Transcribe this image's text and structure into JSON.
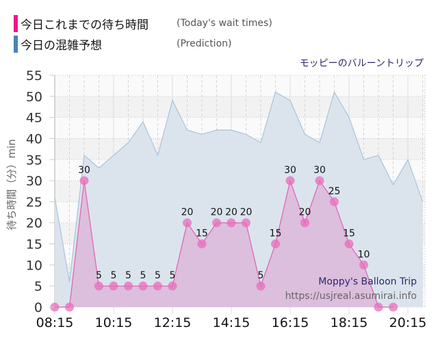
{
  "legend": [
    {
      "label": "今日これまでの待ち時間",
      "english": "(Today's wait times)",
      "color": "#f0148c"
    },
    {
      "label": "今日の混雑予想",
      "english": "(Prediction)",
      "color": "#4a82b4"
    }
  ],
  "chart_title": "モッピーのバルーントリップ",
  "watermark": {
    "name": "Moppy's Balloon Trip",
    "url": "https://usjreal.asumirai.info"
  },
  "colors": {
    "wait_line": "#e060b0",
    "wait_fill": "#dcb9da",
    "wait_point": "#ea6cbb",
    "prediction_line": "#a9c3d9",
    "prediction_fill": "#d9e3ec",
    "band_light": "#fafafa",
    "band_dark": "#f2f2f2"
  },
  "chart_data": {
    "type": "area",
    "title": "モッピーのバルーントリップ",
    "xlabel": "",
    "ylabel": "待ち時間（分）min",
    "ylim": [
      0,
      55
    ],
    "yticks": [
      0,
      5,
      10,
      15,
      20,
      25,
      30,
      35,
      40,
      45,
      50,
      55
    ],
    "xtick_labels": [
      "08:15",
      "10:15",
      "12:15",
      "14:15",
      "16:15",
      "18:15",
      "20:15"
    ],
    "grid": true,
    "legend_position": "top-left",
    "series": [
      {
        "name": "今日これまでの待ち時間 (Today's wait times)",
        "type": "area+markers",
        "x": [
          "08:15",
          "08:45",
          "09:15",
          "09:45",
          "10:15",
          "10:45",
          "11:15",
          "11:45",
          "12:15",
          "12:45",
          "13:15",
          "13:45",
          "14:15",
          "14:45",
          "15:15",
          "15:45",
          "16:15",
          "16:45",
          "17:15",
          "17:45",
          "18:15",
          "18:45",
          "19:15",
          "19:45"
        ],
        "values": [
          0,
          0,
          30,
          5,
          5,
          5,
          5,
          5,
          5,
          20,
          15,
          20,
          20,
          20,
          5,
          15,
          30,
          20,
          30,
          25,
          15,
          10,
          0,
          0
        ],
        "labels": [
          "",
          "",
          "30",
          "5",
          "5",
          "5",
          "5",
          "5",
          "5",
          "20",
          "15",
          "20",
          "20",
          "20",
          "5",
          "15",
          "30",
          "20",
          "30",
          "25",
          "15",
          "10",
          "",
          ""
        ]
      },
      {
        "name": "今日の混雑予想 (Prediction)",
        "type": "area",
        "x": [
          "08:15",
          "08:45",
          "09:15",
          "09:45",
          "10:15",
          "10:45",
          "11:15",
          "11:45",
          "12:15",
          "12:45",
          "13:15",
          "13:45",
          "14:15",
          "14:45",
          "15:15",
          "15:45",
          "16:15",
          "16:45",
          "17:15",
          "17:45",
          "18:15",
          "18:45",
          "19:15",
          "19:45",
          "20:15",
          "20:45"
        ],
        "values": [
          26,
          6,
          36,
          33,
          36,
          39,
          44,
          36,
          49,
          42,
          41,
          42,
          42,
          41,
          39,
          51,
          49,
          41,
          39,
          51,
          45,
          35,
          36,
          29,
          35,
          25
        ]
      }
    ]
  }
}
